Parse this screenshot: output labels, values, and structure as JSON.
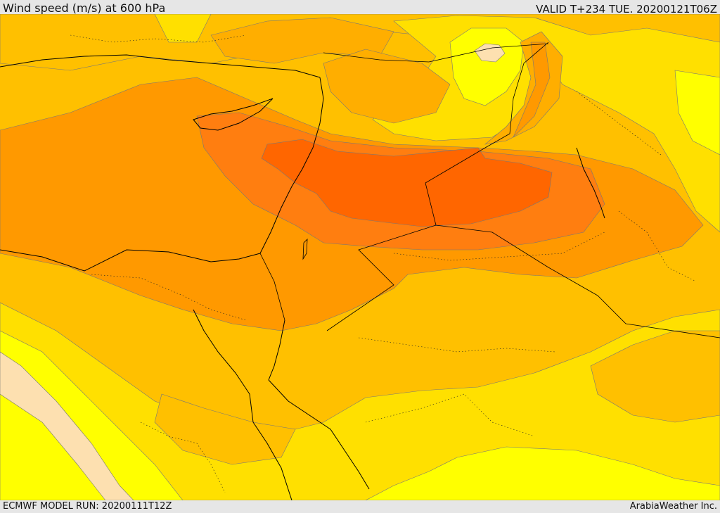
{
  "header": {
    "title": "Wind speed (m/s) at 600 hPa",
    "valid": "VALID T+234 TUE. 20200121T06Z"
  },
  "footer": {
    "model_run": "ECMWF MODEL RUN: 20200111T12Z",
    "credit": "ArabiaWeather Inc."
  },
  "map": {
    "colors": {
      "pale": "#fde0b0",
      "yellow": "#ffff00",
      "gold": "#ffe000",
      "amber": "#ffc000",
      "orange_light": "#ffae00",
      "orange": "#ff9900",
      "orange_dark": "#ff7e10",
      "red_orange": "#ff6600",
      "coast": "#000000",
      "contour": "#777777"
    }
  }
}
